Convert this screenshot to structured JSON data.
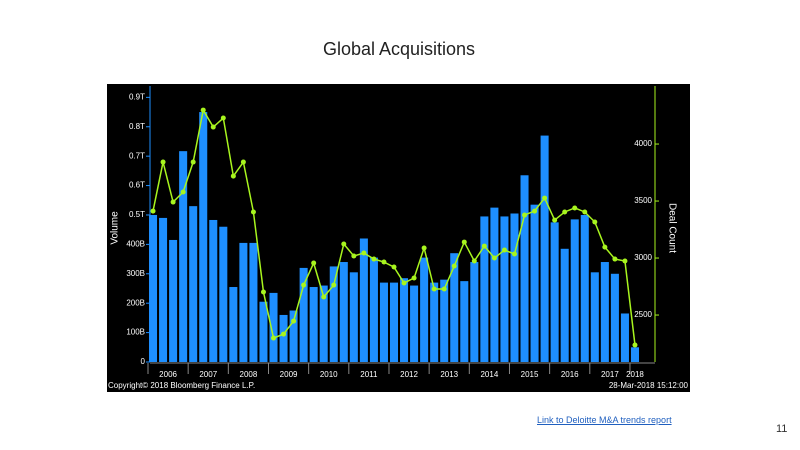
{
  "chart_data": {
    "type": "bar_line",
    "title": "Global Acquisitions",
    "y_label": "Volume",
    "y2_label": "Deal Count",
    "footer_left": "Copyright© 2018 Bloomberg Finance L.P.",
    "footer_right": "28-Mar-2018 15:12:00",
    "categories": [
      null,
      null,
      null,
      null,
      null,
      null,
      null,
      null,
      null,
      null,
      null,
      null,
      null,
      null,
      null,
      null,
      null,
      null,
      null,
      null,
      null,
      null,
      null,
      null,
      null,
      null,
      null,
      null,
      null,
      null,
      null,
      null,
      null,
      null,
      null,
      null,
      null,
      null,
      null,
      null,
      null,
      null,
      null,
      null,
      null,
      null,
      null,
      null,
      null
    ],
    "year_labels": [
      "2006",
      "2007",
      "2008",
      "2009",
      "2010",
      "2011",
      "2012",
      "2013",
      "2014",
      "2015",
      "2016",
      "2017",
      "2018"
    ],
    "series": [
      {
        "name": "Volume",
        "color": "#1e8fff",
        "kind": "bar",
        "values": [
          500,
          490,
          415,
          717,
          530,
          850,
          483,
          460,
          255,
          405,
          405,
          205,
          235,
          160,
          175,
          320,
          255,
          260,
          325,
          340,
          305,
          420,
          355,
          270,
          270,
          285,
          260,
          355,
          270,
          280,
          370,
          275,
          340,
          495,
          525,
          495,
          505,
          635,
          535,
          770,
          475,
          385,
          485,
          500,
          305,
          340,
          300,
          165,
          50
        ]
      },
      {
        "name": "Deal Count",
        "color": "#a8f51e",
        "kind": "line",
        "axis": "y2",
        "values": [
          3412,
          3842,
          3491,
          3579,
          3842,
          4298,
          4149,
          4228,
          3719,
          3842,
          3404,
          2702,
          2298,
          2333,
          2447,
          2763,
          2956,
          2658,
          2763,
          3123,
          3018,
          3044,
          2991,
          2965,
          2921,
          2781,
          2825,
          3088,
          2728,
          2728,
          2930,
          3140,
          2974,
          3105,
          3000,
          3070,
          3035,
          3377,
          3412,
          3526,
          3333,
          3404,
          3439,
          3404,
          3316,
          3096,
          2991,
          2974,
          2237
        ]
      }
    ],
    "ylim": [
      0,
      925
    ],
    "yticks": [
      0,
      {
        "value": 100,
        "label": "100B"
      },
      {
        "value": 200,
        "label": "200B"
      },
      {
        "value": 300,
        "label": "300B"
      },
      {
        "value": 400,
        "label": "400B"
      },
      {
        "value": 500,
        "label": "0.5T"
      },
      {
        "value": 600,
        "label": "0.6T"
      },
      {
        "value": 700,
        "label": "0.7T"
      },
      {
        "value": 800,
        "label": "0.8T"
      },
      {
        "value": 900,
        "label": "0.9T"
      }
    ],
    "y2lim": [
      2088,
      4474
    ],
    "y2ticks": [
      2500,
      3000,
      3500,
      4000
    ]
  },
  "link": "Link to Deloitte M&A trends report",
  "page_number": "11"
}
